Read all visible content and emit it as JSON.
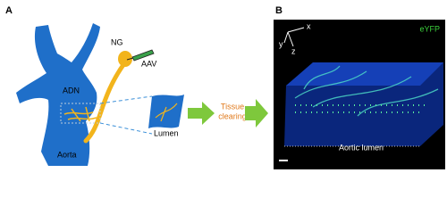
{
  "panel_a": {
    "label": "A",
    "labels": {
      "ng": "NG",
      "aav": "AAV",
      "adn": "ADN",
      "lumen": "Lumen",
      "tissue_clearing": [
        "Tissue",
        "clearing"
      ],
      "aorta": "Aorta"
    }
  },
  "panel_b": {
    "label": "B",
    "axes": {
      "x": "x",
      "y": "y",
      "z": "z"
    },
    "channel": "eYFP",
    "caption": "Aortic lumen"
  }
}
